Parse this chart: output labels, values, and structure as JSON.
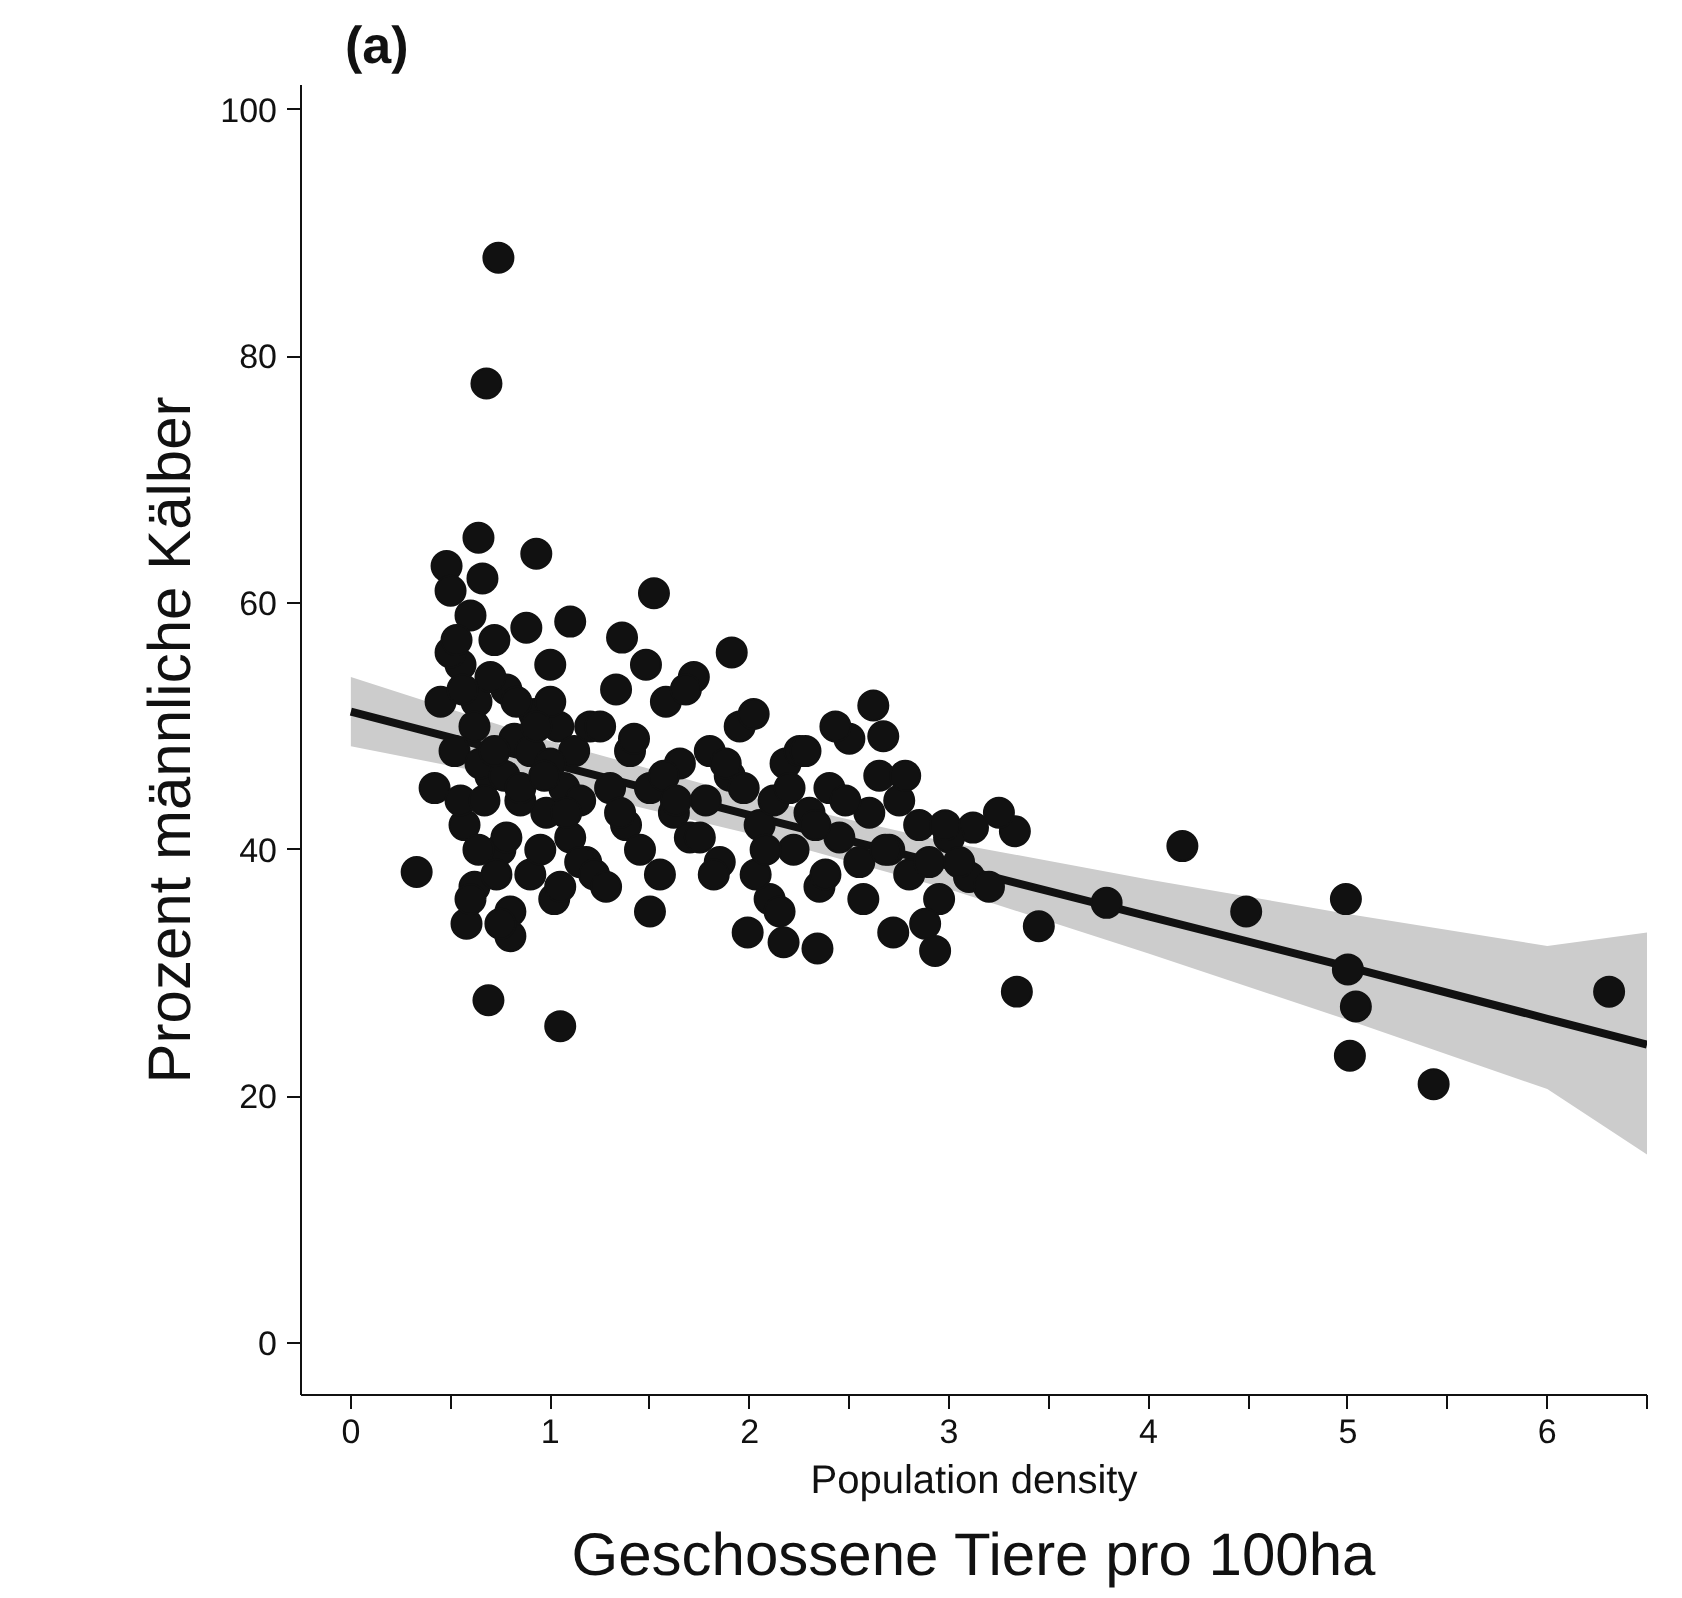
{
  "chart_data": {
    "type": "scatter",
    "title": "(a)",
    "xlabel": "Population density",
    "ylabel": "Prozent männliche Kälber",
    "annotations": [
      "Geschossene Tiere pro 100ha"
    ],
    "xlim": [
      -0.25,
      6.5
    ],
    "ylim": [
      -4.2,
      102
    ],
    "xticks": [
      0,
      {
        "value": 0.5,
        "label": null
      },
      1,
      {
        "value": 1.5,
        "label": null
      },
      2,
      {
        "value": 2.5,
        "label": null
      },
      3,
      {
        "value": 3.5,
        "label": null
      },
      4,
      {
        "value": 4.5,
        "label": null
      },
      5,
      {
        "value": 5.5,
        "label": null
      },
      6,
      {
        "value": 6.5,
        "label": null
      }
    ],
    "yticks": [
      0,
      20,
      40,
      60,
      80,
      100
    ],
    "grid": false,
    "series": [
      {
        "color": "#111111",
        "marker": "circle",
        "x": [
          0.33,
          0.74,
          0.68,
          0.93,
          1.52,
          1.36,
          1.1,
          1.05,
          0.69,
          0.64,
          0.48,
          4.17,
          4.49,
          4.99,
          5.0,
          5.04,
          5.01,
          5.43,
          6.31,
          3.79,
          3.45,
          3.34,
          3.1,
          3.12,
          3.33,
          1.91,
          2.62,
          2.67,
          2.34,
          2.72,
          2.93,
          2.17,
          1.99,
          0.42,
          0.45,
          0.5,
          0.52,
          0.55,
          0.57,
          0.6,
          0.62,
          0.63,
          0.66,
          0.7,
          0.72,
          0.75,
          0.78,
          0.8,
          0.82,
          0.85,
          0.88,
          0.9,
          0.92,
          0.98,
          1.0,
          1.02,
          1.04,
          1.07,
          1.1,
          1.12,
          1.15,
          1.18,
          1.2,
          0.5,
          0.55,
          0.58,
          0.62,
          0.65,
          0.7,
          0.73,
          0.77,
          0.8,
          0.83,
          0.9,
          0.95,
          1.0,
          1.05,
          0.53,
          0.6,
          0.67,
          0.72,
          0.78,
          0.85,
          0.93,
          1.0,
          1.08,
          1.15,
          0.56,
          0.64,
          0.75,
          0.97,
          1.22,
          1.25,
          1.3,
          1.33,
          1.38,
          1.4,
          1.45,
          1.48,
          1.5,
          1.55,
          1.58,
          1.62,
          1.65,
          1.7,
          1.72,
          1.78,
          1.8,
          1.85,
          1.9,
          1.95,
          1.28,
          1.35,
          1.42,
          1.5,
          1.57,
          1.63,
          1.68,
          1.75,
          1.82,
          1.88,
          1.97,
          2.02,
          2.05,
          2.1,
          2.12,
          2.18,
          2.22,
          2.25,
          2.3,
          2.35,
          2.4,
          2.45,
          2.5,
          2.55,
          2.6,
          2.65,
          2.7,
          2.75,
          2.8,
          2.85,
          2.9,
          2.95,
          3.0,
          2.03,
          2.08,
          2.15,
          2.2,
          2.28,
          2.33,
          2.38,
          2.43,
          2.48,
          2.57,
          2.68,
          2.78,
          2.88,
          2.98,
          3.05,
          3.2,
          3.25
        ],
        "values": [
          38.2,
          88,
          77.8,
          64,
          60.8,
          57.2,
          58.5,
          25.7,
          27.8,
          65.3,
          63,
          40.3,
          35,
          36,
          30.3,
          27.3,
          23.3,
          21,
          28.5,
          35.7,
          33.8,
          28.5,
          37.8,
          41.8,
          41.5,
          56,
          51.7,
          49.2,
          32,
          33.3,
          31.8,
          32.5,
          33.3,
          45,
          52,
          61,
          48,
          55,
          42,
          59,
          37,
          52,
          62,
          46,
          57,
          40,
          53,
          35,
          49,
          44,
          58,
          38,
          51,
          43,
          55,
          36,
          50,
          45,
          41,
          48,
          44,
          39,
          50,
          56,
          44,
          34,
          50,
          47,
          54,
          38,
          46,
          33,
          52,
          48,
          40,
          52,
          37,
          57,
          36,
          44,
          48,
          41,
          45,
          50,
          47,
          43,
          39,
          53,
          40,
          34,
          46,
          38,
          50,
          45,
          53,
          42,
          48,
          40,
          55,
          45,
          38,
          52,
          43,
          47,
          41,
          54,
          44,
          48,
          39,
          46,
          50,
          37,
          43,
          49,
          35,
          46,
          44,
          53,
          41,
          38,
          47,
          45,
          51,
          42,
          36,
          44,
          47,
          40,
          48,
          43,
          37,
          45,
          41,
          49,
          39,
          43,
          46,
          40,
          44,
          38,
          42,
          39,
          36,
          41,
          38,
          40,
          35,
          45,
          48,
          42,
          38,
          50,
          44,
          36,
          40,
          46,
          34,
          42,
          39,
          37,
          43
        ]
      },
      {
        "type": "line",
        "color": "#111111",
        "marker": "none",
        "x": [
          0,
          1,
          2,
          3,
          4,
          5,
          6,
          6.5
        ],
        "values": [
          51.2,
          47.0,
          42.8,
          38.7,
          34.6,
          30.5,
          26.3,
          24.2
        ],
        "lower": [
          48.4,
          45.2,
          41.3,
          36.8,
          31.6,
          26.2,
          20.6,
          15.3
        ],
        "upper": [
          54.0,
          48.8,
          44.3,
          40.6,
          37.6,
          34.8,
          32.2,
          33.3
        ]
      }
    ]
  }
}
